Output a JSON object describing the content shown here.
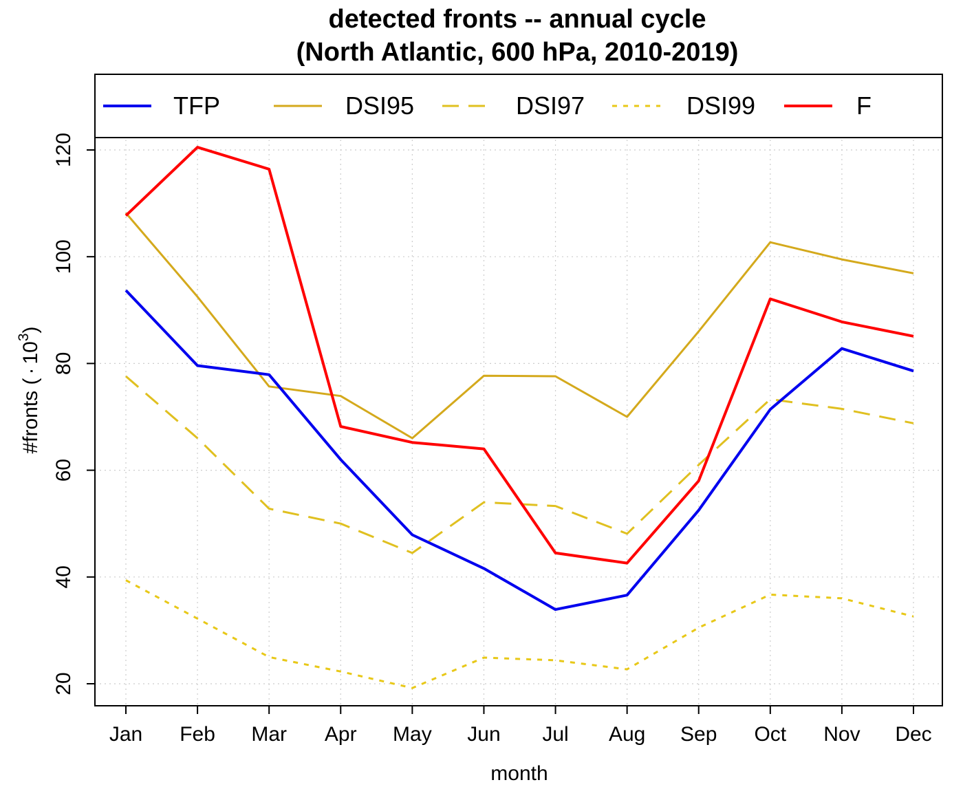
{
  "chart_data": {
    "type": "line",
    "title": "detected fronts -- annual cycle",
    "subtitle": "(North Atlantic, 600 hPa, 2010-2019)",
    "xlabel": "month",
    "ylabel_text": "#fronts (",
    "ylabel_dot": "·",
    "ylabel_base": "10",
    "ylabel_exp": "3",
    "ylabel_close": ")",
    "categories": [
      "Jan",
      "Feb",
      "Mar",
      "Apr",
      "May",
      "Jun",
      "Jul",
      "Aug",
      "Sep",
      "Oct",
      "Nov",
      "Dec"
    ],
    "yticks": [
      20,
      40,
      60,
      80,
      100,
      120
    ],
    "ylim": [
      20,
      120
    ],
    "grid": true,
    "legend_position": "top",
    "series": [
      {
        "name": "TFP",
        "color": "#0000ee",
        "dash": "solid",
        "width": 4,
        "values": [
          93.7,
          79.6,
          77.9,
          62.0,
          47.9,
          41.6,
          33.9,
          36.6,
          52.5,
          71.4,
          82.8,
          78.6
        ]
      },
      {
        "name": "DSI95",
        "color": "#d4a91c",
        "dash": "solid",
        "width": 3,
        "values": [
          108.2,
          92.5,
          75.7,
          73.9,
          66.0,
          77.7,
          77.6,
          70.0,
          86.0,
          102.7,
          99.5,
          96.9
        ]
      },
      {
        "name": "DSI97",
        "color": "#e0c020",
        "dash": "dashed",
        "width": 3,
        "values": [
          77.6,
          66.0,
          52.8,
          50.0,
          44.5,
          54.0,
          53.3,
          48.1,
          61.0,
          73.3,
          71.5,
          68.8
        ]
      },
      {
        "name": "DSI99",
        "color": "#e8c818",
        "dash": "dotted",
        "width": 3,
        "values": [
          39.4,
          32.2,
          25.0,
          22.3,
          19.2,
          24.9,
          24.4,
          22.7,
          30.5,
          36.7,
          36.0,
          32.6
        ]
      },
      {
        "name": "F",
        "color": "#ff0000",
        "dash": "solid",
        "width": 4,
        "values": [
          107.7,
          120.5,
          116.4,
          68.2,
          65.2,
          64.0,
          44.5,
          42.6,
          58.0,
          92.1,
          87.8,
          85.1
        ]
      }
    ]
  }
}
